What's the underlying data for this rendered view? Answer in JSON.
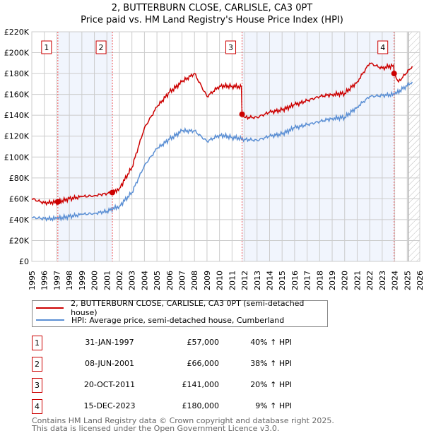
{
  "chart_data": {
    "type": "line",
    "title": "2, BUTTERBURN CLOSE, CARLISLE, CA3 0PT",
    "subtitle": "Price paid vs. HM Land Registry's House Price Index (HPI)",
    "xlim": [
      1995,
      2026
    ],
    "ylim": [
      0,
      220000
    ],
    "x_ticks": [
      "1995",
      "1996",
      "1997",
      "1998",
      "1999",
      "2000",
      "2001",
      "2002",
      "2003",
      "2004",
      "2005",
      "2006",
      "2007",
      "2008",
      "2009",
      "2010",
      "2011",
      "2012",
      "2013",
      "2014",
      "2015",
      "2016",
      "2017",
      "2018",
      "2019",
      "2020",
      "2021",
      "2022",
      "2023",
      "2024",
      "2025",
      "2026"
    ],
    "y_ticks": [
      {
        "v": 0,
        "l": "£0"
      },
      {
        "v": 20000,
        "l": "£20K"
      },
      {
        "v": 40000,
        "l": "£40K"
      },
      {
        "v": 60000,
        "l": "£60K"
      },
      {
        "v": 80000,
        "l": "£80K"
      },
      {
        "v": 100000,
        "l": "£100K"
      },
      {
        "v": 120000,
        "l": "£120K"
      },
      {
        "v": 140000,
        "l": "£140K"
      },
      {
        "v": 160000,
        "l": "£160K"
      },
      {
        "v": 180000,
        "l": "£180K"
      },
      {
        "v": 200000,
        "l": "£200K"
      },
      {
        "v": 220000,
        "l": "£220K"
      }
    ],
    "grid": true,
    "series": [
      {
        "name": "2, BUTTERBURN CLOSE, CARLISLE, CA3 0PT (semi-detached house)",
        "color": "#cc0000",
        "x": [
          1995,
          1996,
          1997.08,
          1998,
          1999,
          2000,
          2001.44,
          2002,
          2003,
          2004,
          2005,
          2006,
          2007,
          2008,
          2009,
          2010,
          2011,
          2011.75,
          2011.8,
          2012,
          2013,
          2014,
          2015,
          2016,
          2017,
          2018,
          2019,
          2020,
          2021,
          2022,
          2023,
          2023.9,
          2023.95,
          2024.3,
          2025.4
        ],
        "y": [
          60000,
          56000,
          57000,
          60000,
          62000,
          63000,
          66000,
          70000,
          90000,
          128000,
          148000,
          162000,
          172000,
          180000,
          158000,
          168000,
          168000,
          167000,
          141000,
          138000,
          138000,
          143000,
          145000,
          150000,
          154000,
          158000,
          160000,
          161000,
          172000,
          190000,
          185000,
          188000,
          180000,
          172000,
          187000
        ]
      },
      {
        "name": "HPI: Average price, semi-detached house, Cumberland",
        "color": "#5b8fd4",
        "x": [
          1995,
          1996,
          1997,
          1998,
          1999,
          2000,
          2001,
          2002,
          2003,
          2004,
          2005,
          2006,
          2007,
          2008,
          2009,
          2010,
          2011,
          2012,
          2013,
          2014,
          2015,
          2016,
          2017,
          2018,
          2019,
          2020,
          2021,
          2022,
          2023,
          2024,
          2025.4
        ],
        "y": [
          42000,
          41000,
          41000,
          43000,
          45000,
          46000,
          48000,
          53000,
          66000,
          92000,
          108000,
          117000,
          125000,
          125000,
          115000,
          121000,
          119000,
          117000,
          116000,
          120000,
          122000,
          128000,
          131000,
          134000,
          137000,
          138000,
          148000,
          158000,
          159000,
          160000,
          172000
        ]
      }
    ],
    "sales": [
      {
        "label": "1",
        "x": 1997.08,
        "y": 57000
      },
      {
        "label": "2",
        "x": 2001.44,
        "y": 66000
      },
      {
        "label": "3",
        "x": 2011.8,
        "y": 141000
      },
      {
        "label": "4",
        "x": 2023.95,
        "y": 180000
      }
    ],
    "shaded_ranges": [
      [
        1997.08,
        2001.44
      ],
      [
        2011.8,
        2023.95
      ]
    ],
    "hatched_from": 2025.1
  },
  "legend": {
    "items": [
      {
        "label": "2, BUTTERBURN CLOSE, CARLISLE, CA3 0PT (semi-detached house)",
        "color": "#cc0000"
      },
      {
        "label": "HPI: Average price, semi-detached house, Cumberland",
        "color": "#5b8fd4"
      }
    ]
  },
  "table": [
    {
      "num": "1",
      "date": "31-JAN-1997",
      "price": "£57,000",
      "hpi": "40% ↑ HPI"
    },
    {
      "num": "2",
      "date": "08-JUN-2001",
      "price": "£66,000",
      "hpi": "38% ↑ HPI"
    },
    {
      "num": "3",
      "date": "20-OCT-2011",
      "price": "£141,000",
      "hpi": "20% ↑ HPI"
    },
    {
      "num": "4",
      "date": "15-DEC-2023",
      "price": "£180,000",
      "hpi": "9% ↑ HPI"
    }
  ],
  "footer": {
    "line1": "Contains HM Land Registry data © Crown copyright and database right 2025.",
    "line2": "This data is licensed under the Open Government Licence v3.0."
  }
}
